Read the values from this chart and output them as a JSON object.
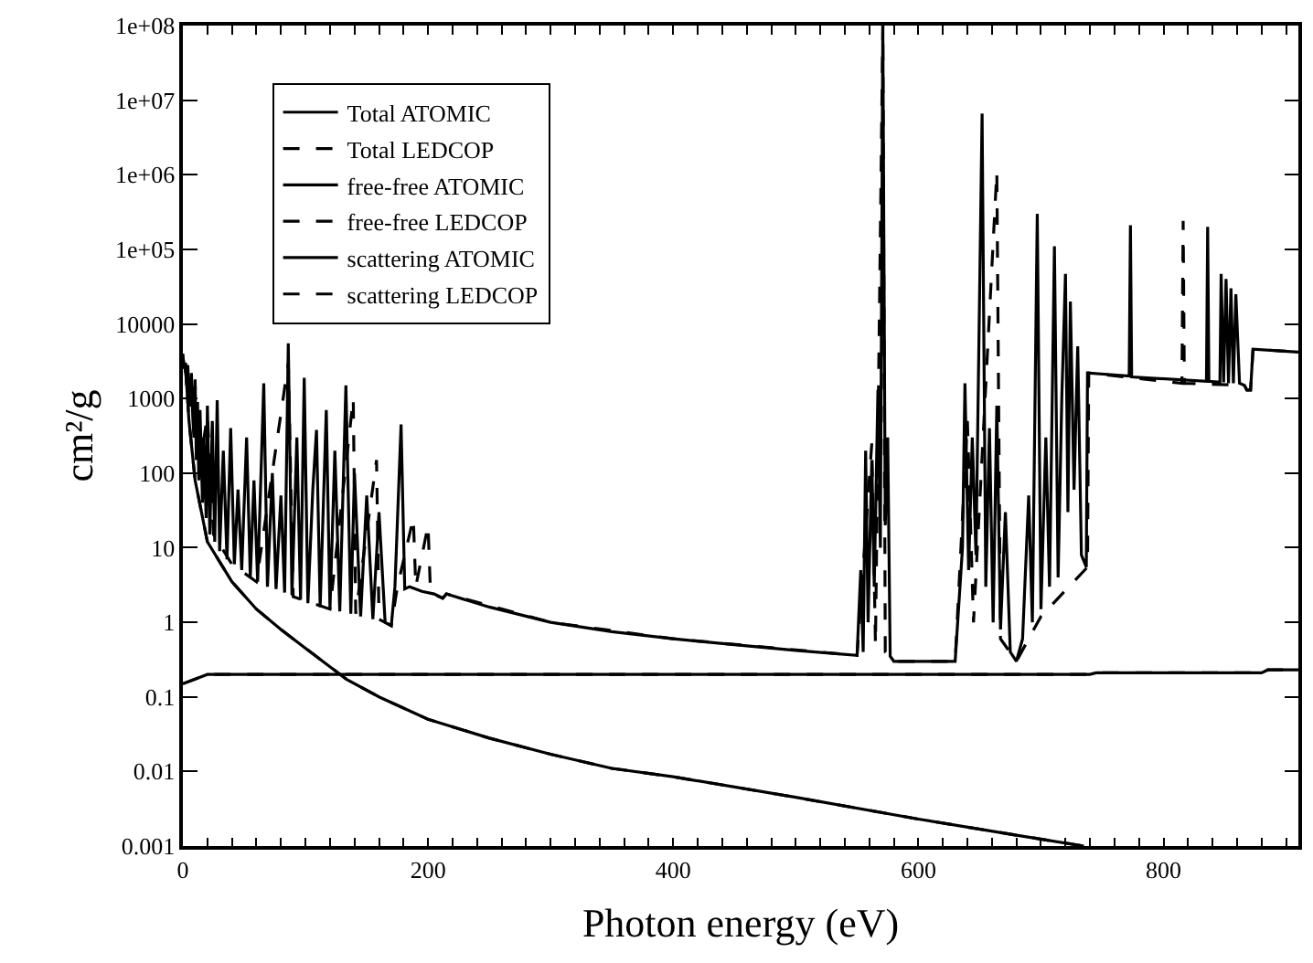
{
  "chart_data": {
    "type": "line",
    "xlabel": "Photon energy (eV)",
    "ylabel": "cm²/g",
    "log": "y",
    "legend": "top left",
    "marker": "none",
    "xlim": [
      0,
      910
    ],
    "xticks": [
      0,
      {
        "value": 20,
        "label": null
      },
      {
        "value": 40,
        "label": null
      },
      {
        "value": 60,
        "label": null
      },
      {
        "value": 80,
        "label": null
      },
      {
        "value": 100,
        "label": null
      },
      {
        "value": 120,
        "label": null
      },
      {
        "value": 140,
        "label": null
      },
      {
        "value": 160,
        "label": null
      },
      {
        "value": 180,
        "label": null
      },
      200,
      {
        "value": 220,
        "label": null
      },
      {
        "value": 240,
        "label": null
      },
      {
        "value": 260,
        "label": null
      },
      {
        "value": 280,
        "label": null
      },
      {
        "value": 300,
        "label": null
      },
      {
        "value": 320,
        "label": null
      },
      {
        "value": 340,
        "label": null
      },
      {
        "value": 360,
        "label": null
      },
      {
        "value": 380,
        "label": null
      },
      400,
      {
        "value": 420,
        "label": null
      },
      {
        "value": 440,
        "label": null
      },
      {
        "value": 460,
        "label": null
      },
      {
        "value": 480,
        "label": null
      },
      {
        "value": 500,
        "label": null
      },
      {
        "value": 520,
        "label": null
      },
      {
        "value": 540,
        "label": null
      },
      {
        "value": 560,
        "label": null
      },
      {
        "value": 580,
        "label": null
      },
      600,
      {
        "value": 620,
        "label": null
      },
      {
        "value": 640,
        "label": null
      },
      {
        "value": 660,
        "label": null
      },
      {
        "value": 680,
        "label": null
      },
      {
        "value": 700,
        "label": null
      },
      {
        "value": 720,
        "label": null
      },
      {
        "value": 740,
        "label": null
      },
      {
        "value": 760,
        "label": null
      },
      {
        "value": 780,
        "label": null
      },
      800,
      {
        "value": 820,
        "label": null
      },
      {
        "value": 840,
        "label": null
      },
      {
        "value": 860,
        "label": null
      },
      {
        "value": 880,
        "label": null
      },
      {
        "value": 900,
        "label": null
      }
    ],
    "ylim": [
      0.001,
      100000000
    ],
    "yticks": [
      0.001,
      0.01,
      0.1,
      1,
      10,
      100,
      1000,
      10000,
      {
        "value": 100000,
        "label": "1e+05"
      },
      {
        "value": 1000000,
        "label": "1e+06"
      },
      {
        "value": 10000000,
        "label": "1e+07"
      },
      {
        "value": 100000000,
        "label": "1e+08"
      }
    ],
    "series": [
      {
        "name": "Total ATOMIC",
        "color": "#000000",
        "line_style": "solid",
        "x": [
          0,
          1,
          2,
          3,
          4,
          5,
          6,
          7,
          8,
          9,
          10,
          11,
          12,
          13,
          14,
          16,
          17,
          19,
          20,
          22,
          24,
          26,
          28,
          30,
          33,
          36,
          39,
          42,
          45,
          48,
          52,
          55,
          58,
          61,
          66,
          69,
          73,
          76,
          80,
          83,
          86,
          89,
          93,
          96,
          99,
          102,
          106,
          109,
          112,
          117,
          120,
          124,
          128,
          133,
          137,
          140,
          145,
          150,
          155,
          160,
          165,
          170,
          173,
          178,
          181,
          185,
          195,
          205,
          212,
          215,
          250,
          300,
          350,
          400,
          450,
          500,
          550,
          553,
          555,
          557,
          559,
          562,
          564,
          567,
          569,
          571,
          573,
          575,
          577,
          580,
          600,
          630,
          636,
          638,
          641,
          644,
          647,
          652,
          655,
          658,
          661,
          664,
          667,
          671,
          675,
          680,
          685,
          690,
          693,
          697,
          700,
          704,
          707,
          711,
          714,
          717,
          720,
          722,
          724,
          727,
          730,
          733,
          737,
          738,
          772,
          773,
          774,
          835,
          836,
          837,
          846,
          847,
          849,
          851,
          853,
          855,
          857,
          859,
          862,
          866,
          868,
          871,
          873,
          910
        ],
        "values": [
          4000,
          2500,
          3000,
          1500,
          2800,
          1200,
          800,
          2200,
          600,
          300,
          1800,
          150,
          900,
          80,
          700,
          40,
          300,
          25,
          800,
          15,
          500,
          12,
          950,
          9,
          200,
          7,
          400,
          6,
          60,
          5,
          300,
          4,
          80,
          3.5,
          1600,
          3,
          100,
          2.8,
          50,
          2.5,
          5500,
          2.3,
          300,
          2,
          1900,
          1.8,
          60,
          380,
          1.6,
          700,
          1.5,
          200,
          1.4,
          1500,
          1.3,
          100,
          1.2,
          50,
          1.1,
          30,
          1,
          0.9,
          3,
          450,
          2.8,
          3,
          2.6,
          2.4,
          2.1,
          2.4,
          1.6,
          1,
          0.75,
          0.6,
          0.5,
          0.42,
          0.36,
          5,
          0.4,
          200,
          1,
          150,
          3,
          1300,
          10,
          100000000,
          20,
          300,
          0.35,
          0.3,
          0.3,
          0.3,
          10,
          1600,
          5,
          300,
          8,
          6600000,
          3,
          400,
          1,
          800,
          0.8,
          30,
          0.4,
          0.3,
          0.6,
          50,
          1,
          300000,
          1.5,
          300,
          3,
          110000,
          4,
          1000,
          47000,
          30,
          20000,
          60,
          5000,
          8,
          5.5,
          2200,
          2000,
          210000,
          1950,
          1700,
          200000,
          1700,
          1650,
          47000,
          1650,
          40000,
          1600,
          30000,
          1600,
          25000,
          1600,
          1500,
          1300,
          1300,
          4600,
          4200
        ]
      },
      {
        "name": "Total LEDCOP",
        "color": "#000000",
        "line_style": "dashed",
        "x": [
          0,
          3,
          6,
          10,
          13,
          20,
          25,
          40,
          60,
          86,
          90,
          120,
          139,
          141,
          158,
          160,
          170,
          175,
          188,
          190,
          200,
          202,
          212,
          215,
          300,
          400,
          550,
          562,
          565,
          571,
          573,
          580,
          630,
          640,
          645,
          664,
          667,
          680,
          700,
          738,
          739,
          815,
          816,
          817,
          866,
          868,
          871,
          873,
          910
        ],
        "values": [
          3500,
          2000,
          700,
          1500,
          100,
          600,
          15,
          6,
          3.5,
          3000,
          2.2,
          1.5,
          1000,
          1.3,
          150,
          1.1,
          0.9,
          3,
          25,
          3,
          20,
          2.5,
          2.1,
          2.4,
          1,
          0.6,
          0.36,
          250,
          0.5,
          100000000,
          0.4,
          0.3,
          0.3,
          500,
          1,
          1100000,
          0.6,
          0.3,
          1.2,
          5.5,
          2200,
          1600,
          240000,
          1600,
          1500,
          1300,
          1300,
          4600,
          4200
        ]
      },
      {
        "name": "free-free ATOMIC",
        "color": "#000000",
        "line_style": "solid",
        "x": [
          2,
          5,
          10,
          20,
          40,
          60,
          80,
          100,
          134,
          160,
          200,
          250,
          300,
          350,
          400,
          500,
          600,
          680,
          735
        ],
        "values": [
          3000,
          500,
          80,
          12,
          3.5,
          1.5,
          0.8,
          0.45,
          0.17,
          0.1,
          0.05,
          0.028,
          0.017,
          0.011,
          0.0085,
          0.0045,
          0.0023,
          0.0014,
          0.001
        ]
      },
      {
        "name": "free-free LEDCOP",
        "color": "#000000",
        "line_style": "dashed",
        "x": [
          2,
          5,
          10,
          20,
          40,
          60,
          80,
          100,
          134,
          160,
          200,
          250,
          300,
          350,
          400,
          500,
          600,
          680,
          735
        ],
        "values": [
          3000,
          500,
          80,
          12,
          3.5,
          1.5,
          0.8,
          0.45,
          0.17,
          0.1,
          0.05,
          0.028,
          0.017,
          0.011,
          0.0085,
          0.0045,
          0.0023,
          0.0014,
          0.001
        ]
      },
      {
        "name": "scattering ATOMIC",
        "color": "#000000",
        "line_style": "solid",
        "x": [
          0,
          20,
          740,
          745,
          880,
          885,
          910
        ],
        "values": [
          0.15,
          0.2,
          0.2,
          0.21,
          0.21,
          0.23,
          0.23
        ]
      },
      {
        "name": "scattering LEDCOP",
        "color": "#000000",
        "line_style": "dashed",
        "x": [
          0,
          20,
          740,
          745,
          880,
          885,
          910
        ],
        "values": [
          0.15,
          0.2,
          0.2,
          0.21,
          0.21,
          0.23,
          0.23
        ]
      }
    ]
  }
}
